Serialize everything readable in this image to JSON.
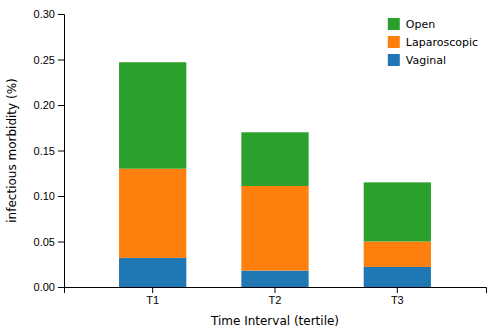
{
  "chart_data": {
    "type": "bar",
    "stacked": true,
    "categories": [
      "T1",
      "T2",
      "T3"
    ],
    "series": [
      {
        "name": "Vaginal",
        "values": [
          0.032,
          0.018,
          0.022
        ]
      },
      {
        "name": "Laparoscopic",
        "values": [
          0.098,
          0.093,
          0.028
        ]
      },
      {
        "name": "Open",
        "values": [
          0.117,
          0.059,
          0.065
        ]
      }
    ],
    "xlabel": "Time Interval (tertile)",
    "ylabel": "infectious morbidity (%)",
    "ylim": [
      0.0,
      0.3
    ],
    "yticks": [
      {
        "value": 0.0,
        "label": "0.00"
      },
      0.05,
      {
        "value": 0.1,
        "label": "0.10"
      },
      0.15,
      {
        "value": 0.2,
        "label": "0.20"
      },
      0.25,
      {
        "value": 0.3,
        "label": "0.30"
      }
    ],
    "grid": false,
    "legend": "upper right"
  }
}
